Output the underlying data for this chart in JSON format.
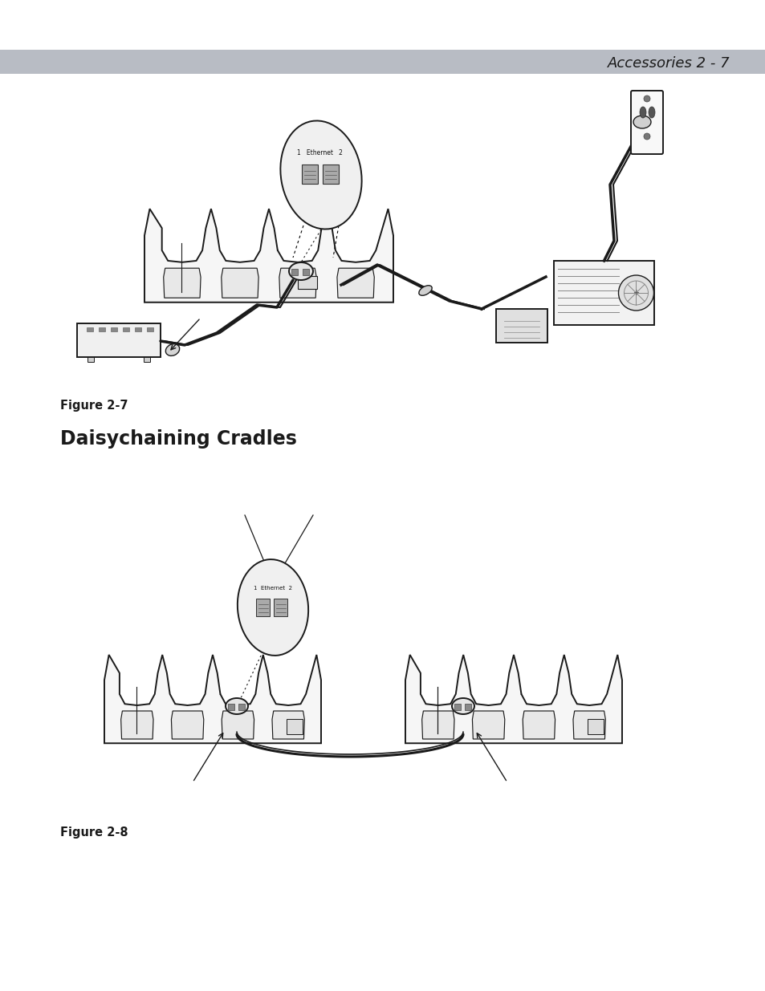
{
  "page_bg": "#ffffff",
  "header_bg": "#b8bcc4",
  "header_text": "Accessories 2 - 7",
  "header_text_color": "#1a1a1a",
  "header_font_size": 13,
  "figure1_caption": "Figure 2-7",
  "figure2_caption": "Figure 2-8",
  "section_title": "Daisychaining Cradles",
  "section_title_font_size": 17,
  "caption_font_size": 10.5,
  "fig_width": 9.54,
  "fig_height": 12.35,
  "lc": "#1a1a1a",
  "lw": 1.4
}
